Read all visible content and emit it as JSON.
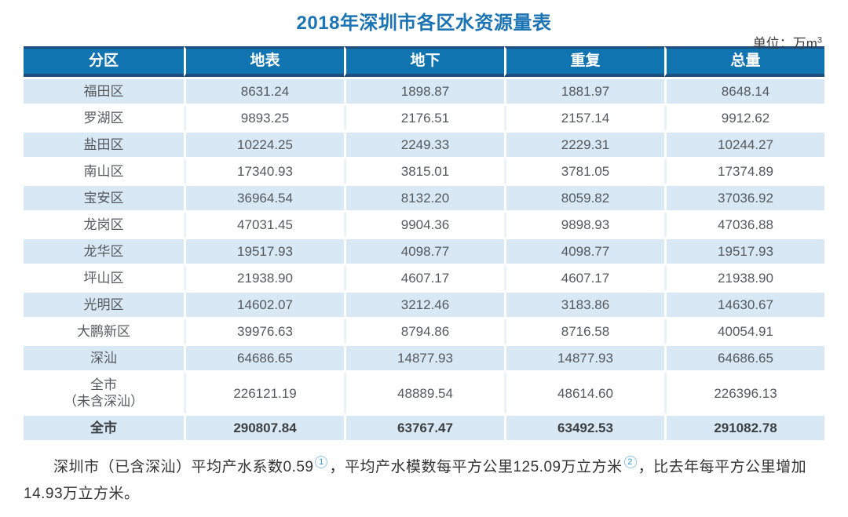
{
  "page": {
    "title": "2018年深圳市各区水资源量表",
    "unit_prefix": "单位：万m",
    "unit_exponent": "3"
  },
  "chart_data": {
    "type": "table",
    "title": "2018年深圳市各区水资源量表",
    "unit": "万m³",
    "columns": [
      "分区",
      "地表",
      "地下",
      "重复",
      "总量"
    ],
    "rows": [
      [
        "福田区",
        "8631.24",
        "1898.87",
        "1881.97",
        "8648.14"
      ],
      [
        "罗湖区",
        "9893.25",
        "2176.51",
        "2157.14",
        "9912.62"
      ],
      [
        "盐田区",
        "10224.25",
        "2249.33",
        "2229.31",
        "10244.27"
      ],
      [
        "南山区",
        "17340.93",
        "3815.01",
        "3781.05",
        "17374.89"
      ],
      [
        "宝安区",
        "36964.54",
        "8132.20",
        "8059.82",
        "37036.92"
      ],
      [
        "龙岗区",
        "47031.45",
        "9904.36",
        "9898.93",
        "47036.88"
      ],
      [
        "龙华区",
        "19517.93",
        "4098.77",
        "4098.77",
        "19517.93"
      ],
      [
        "坪山区",
        "21938.90",
        "4607.17",
        "4607.17",
        "21938.90"
      ],
      [
        "光明区",
        "14602.07",
        "3212.46",
        "3183.86",
        "14630.67"
      ],
      [
        "大鹏新区",
        "39976.63",
        "8794.86",
        "8716.58",
        "40054.91"
      ],
      [
        "深汕",
        "64686.65",
        "14877.93",
        "14877.93",
        "64686.65"
      ],
      [
        "全市\n（未含深汕）",
        "226121.19",
        "48889.54",
        "48614.60",
        "226396.13"
      ],
      [
        "全市",
        "290807.84",
        "63767.47",
        "63492.53",
        "291082.78"
      ]
    ]
  },
  "footnote": {
    "segments": [
      {
        "text": "深圳市（已含深汕）平均产水系数0.59"
      },
      {
        "ref": "1"
      },
      {
        "text": "，平均产水模数每平方公里125.09万立方米"
      },
      {
        "ref": "2"
      },
      {
        "text": "，比去年每平方公里增加14.93万立方米。"
      }
    ]
  },
  "colors": {
    "title": "#1b74b4",
    "header_bg": "#0f74b0",
    "header_border": "#1c4d7d",
    "row_light": "#d8e8f4",
    "row_white": "#ffffff",
    "cell_text": "#55595d",
    "footnote_ref": "#2f97d0"
  }
}
